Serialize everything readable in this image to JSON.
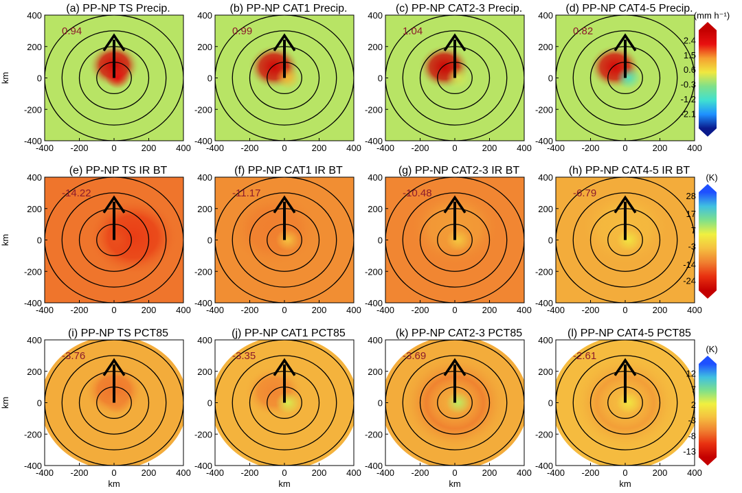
{
  "chart_data": [
    {
      "type": "heatmap",
      "figure_rows": [
        {
          "variable": "Precip.",
          "colorbar": {
            "unit_label": "(mm h⁻¹)",
            "ticks": [
              2.4,
              1.5,
              0.6,
              -0.3,
              -1.2,
              -2.1
            ],
            "range": [
              -3.0,
              3.0
            ],
            "colors": [
              "#0a1a8c",
              "#1e90ff",
              "#40e0d0",
              "#7fe08a",
              "#f0e840",
              "#f5a030",
              "#e81010",
              "#c40000"
            ],
            "low_color": "#0a1a8c",
            "high_color": "#c40000"
          },
          "panels": [
            {
              "label": "(a)",
              "title": "PP-NP TS   Precip.",
              "mean_value": "0.94",
              "background": 0.0,
              "core_value": 2.6,
              "core_dir": "up",
              "center_value": 2.2
            },
            {
              "label": "(b)",
              "title": "PP-NP CAT1   Precip.",
              "mean_value": "0.99",
              "background": 0.0,
              "core_value": 2.7,
              "core_dir": "up-left",
              "center_value": 1.0
            },
            {
              "label": "(c)",
              "title": "PP-NP CAT2-3   Precip.",
              "mean_value": "1.04",
              "background": 0.0,
              "core_value": 2.8,
              "core_dir": "up-left",
              "center_value": 0.2
            },
            {
              "label": "(d)",
              "title": "PP-NP CAT4-5   Precip.",
              "mean_value": "0.82",
              "background": 0.0,
              "core_value": 2.6,
              "core_dir": "up-left",
              "center_value": -1.0
            }
          ]
        },
        {
          "variable": "IR BT",
          "colorbar": {
            "unit_label": "(K)",
            "ticks": [
              28,
              17,
              7,
              -3,
              -14,
              -24
            ],
            "range": [
              -30,
              30
            ],
            "colors": [
              "#c40000",
              "#e83010",
              "#f08030",
              "#f5c040",
              "#f0f040",
              "#7fe08a",
              "#40c0e0",
              "#1e50ff"
            ],
            "low_color": "#c40000",
            "high_color": "#1e50ff"
          },
          "panels": [
            {
              "label": "(e)",
              "title": "PP-NP TS   IR BT",
              "mean_value": "-14.22",
              "background": -14,
              "core_value": -20,
              "core_dir": "right",
              "center_value": -18
            },
            {
              "label": "(f)",
              "title": "PP-NP CAT1   IR BT",
              "mean_value": "-11.17",
              "background": -11,
              "core_value": -13,
              "core_dir": "up-left",
              "center_value": -4
            },
            {
              "label": "(g)",
              "title": "PP-NP CAT2-3   IR BT",
              "mean_value": "-10.48",
              "background": -12,
              "core_value": -9,
              "core_dir": "up",
              "center_value": -3
            },
            {
              "label": "(h)",
              "title": "PP-NP CAT4-5   IR BT",
              "mean_value": "-6.79",
              "background": -7,
              "core_value": -5,
              "core_dir": "up",
              "center_value": 2
            }
          ]
        },
        {
          "variable": "PCT85",
          "colorbar": {
            "unit_label": "(K)",
            "ticks": [
              12,
              7,
              2,
              -3,
              -8,
              -13
            ],
            "range": [
              -15,
              15
            ],
            "colors": [
              "#c40000",
              "#e83010",
              "#f08030",
              "#f5c040",
              "#f0f040",
              "#7fe08a",
              "#40c0e0",
              "#1e50ff"
            ],
            "low_color": "#c40000",
            "high_color": "#1e50ff"
          },
          "panels": [
            {
              "label": "(i)",
              "title": "PP-NP TS   PCT85",
              "mean_value": "-3.76",
              "background": -3.5,
              "core_value": -7,
              "core_dir": "up",
              "center_value": -6
            },
            {
              "label": "(j)",
              "title": "PP-NP CAT1   PCT85",
              "mean_value": "-3.35",
              "background": -3.0,
              "core_value": -6,
              "core_dir": "up-left",
              "center_value": 3
            },
            {
              "label": "(k)",
              "title": "PP-NP CAT2-3   PCT85",
              "mean_value": "-3.69",
              "background": -3.5,
              "core_value": -7,
              "core_dir": "ring",
              "center_value": 4
            },
            {
              "label": "(l)",
              "title": "PP-NP CAT4-5   PCT85",
              "mean_value": "-2.61",
              "background": -2.5,
              "core_value": -5,
              "core_dir": "ring",
              "center_value": 1
            }
          ]
        }
      ],
      "x_ticks": [
        "-400",
        "-200",
        "0",
        "200",
        "400"
      ],
      "y_ticks": [
        "400",
        "200",
        "0",
        "-200",
        "-400"
      ],
      "xlim": [
        -400,
        400
      ],
      "ylim": [
        -400,
        400
      ],
      "xlabel": "km",
      "ylabel": "km",
      "range_rings_km": [
        100,
        200,
        300,
        400
      ],
      "shear_vector": {
        "direction": "north",
        "length_km": 270
      }
    }
  ]
}
